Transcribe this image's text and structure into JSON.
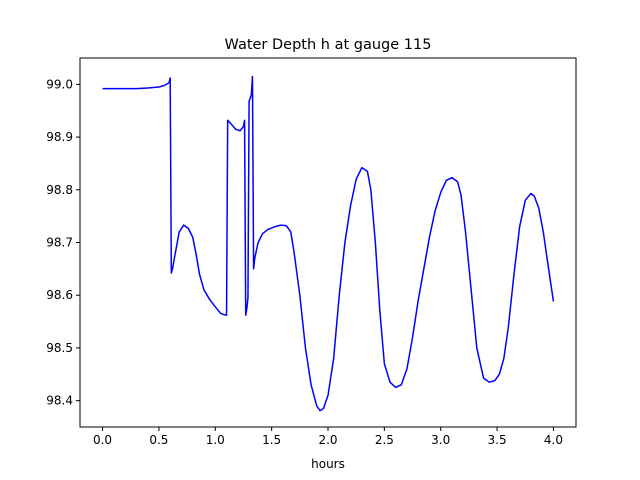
{
  "chart_data": {
    "type": "line",
    "title": "Water Depth h at gauge 115",
    "xlabel": "hours",
    "ylabel": "",
    "xlim": [
      -0.2,
      4.2
    ],
    "ylim": [
      98.35,
      99.05
    ],
    "xticks": [
      0.0,
      0.5,
      1.0,
      1.5,
      2.0,
      2.5,
      3.0,
      3.5,
      4.0
    ],
    "xtick_labels": [
      "0.0",
      "0.5",
      "1.0",
      "1.5",
      "2.0",
      "2.5",
      "3.0",
      "3.5",
      "4.0"
    ],
    "yticks": [
      98.4,
      98.5,
      98.6,
      98.7,
      98.8,
      98.9,
      99.0
    ],
    "ytick_labels": [
      "98.4",
      "98.5",
      "98.6",
      "98.7",
      "98.8",
      "98.9",
      "99.0"
    ],
    "grid": false,
    "legend": "none",
    "series": [
      {
        "color": "#0000ff",
        "x": [
          0.0,
          0.1,
          0.2,
          0.3,
          0.4,
          0.5,
          0.55,
          0.59,
          0.6,
          0.61,
          0.62,
          0.65,
          0.68,
          0.72,
          0.76,
          0.8,
          0.83,
          0.86,
          0.9,
          0.95,
          1.0,
          1.05,
          1.1,
          1.11,
          1.14,
          1.18,
          1.22,
          1.25,
          1.26,
          1.27,
          1.28,
          1.29,
          1.3,
          1.32,
          1.33,
          1.34,
          1.35,
          1.38,
          1.42,
          1.47,
          1.53,
          1.58,
          1.63,
          1.67,
          1.7,
          1.75,
          1.8,
          1.85,
          1.9,
          1.93,
          1.96,
          2.0,
          2.05,
          2.1,
          2.15,
          2.2,
          2.25,
          2.3,
          2.35,
          2.38,
          2.42,
          2.46,
          2.5,
          2.55,
          2.6,
          2.65,
          2.7,
          2.75,
          2.8,
          2.85,
          2.9,
          2.95,
          3.0,
          3.05,
          3.1,
          3.15,
          3.18,
          3.22,
          3.27,
          3.32,
          3.38,
          3.43,
          3.48,
          3.52,
          3.56,
          3.6,
          3.65,
          3.7,
          3.75,
          3.8,
          3.83,
          3.87,
          3.91,
          3.95,
          4.0
        ],
        "y": [
          98.992,
          98.992,
          98.992,
          98.992,
          98.993,
          98.995,
          98.998,
          99.003,
          99.012,
          98.642,
          98.65,
          98.685,
          98.72,
          98.733,
          98.727,
          98.71,
          98.678,
          98.64,
          98.61,
          98.592,
          98.578,
          98.565,
          98.562,
          98.932,
          98.925,
          98.915,
          98.912,
          98.92,
          98.932,
          98.562,
          98.575,
          98.595,
          98.968,
          98.98,
          99.015,
          98.65,
          98.67,
          98.7,
          98.717,
          98.725,
          98.73,
          98.733,
          98.732,
          98.72,
          98.68,
          98.6,
          98.5,
          98.43,
          98.39,
          98.381,
          98.385,
          98.41,
          98.48,
          98.6,
          98.7,
          98.77,
          98.82,
          98.842,
          98.835,
          98.8,
          98.7,
          98.57,
          98.47,
          98.435,
          98.425,
          98.43,
          98.46,
          98.52,
          98.59,
          98.65,
          98.71,
          98.76,
          98.795,
          98.818,
          98.823,
          98.815,
          98.79,
          98.72,
          98.61,
          98.5,
          98.443,
          98.435,
          98.438,
          98.45,
          98.48,
          98.54,
          98.64,
          98.73,
          98.78,
          98.793,
          98.788,
          98.765,
          98.72,
          98.66,
          98.588
        ]
      }
    ]
  }
}
